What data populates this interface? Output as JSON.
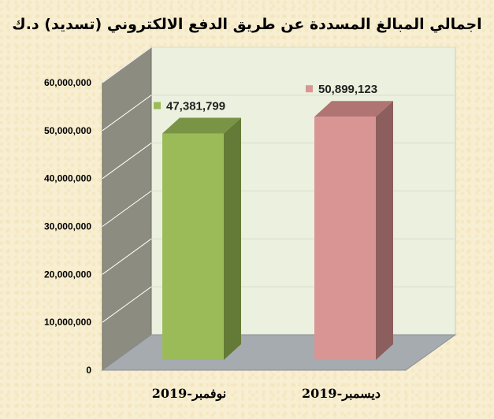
{
  "chart_data": {
    "type": "bar",
    "title": "اجمالي المبالغ المسددة عن طريق الدفع الالكتروني (تسديد) د.ك",
    "categories": [
      "نوفمبر-2019",
      "ديسمبر-2019"
    ],
    "values": [
      47381799,
      50899123
    ],
    "value_labels": [
      "47,381,799",
      "50,899,123"
    ],
    "ylim": [
      0,
      60000000
    ],
    "yticks": [
      0,
      10000000,
      20000000,
      30000000,
      40000000,
      50000000,
      60000000
    ],
    "ytick_labels": [
      "0",
      "10,000,000",
      "20,000,000",
      "30,000,000",
      "40,000,000",
      "50,000,000",
      "60,000,000"
    ],
    "grid": true,
    "three_d": true,
    "colors": {
      "bars": [
        "#9bbb59",
        "#d99594"
      ],
      "bars_side": [
        "#647a37",
        "#8c5e5d"
      ],
      "bars_top": [
        "#7a9446",
        "#b07473"
      ],
      "back_wall": "#ebf1de",
      "side_wall": "#8c8c80",
      "floor": "#a6abb0",
      "gridline": "#ffffff"
    }
  }
}
